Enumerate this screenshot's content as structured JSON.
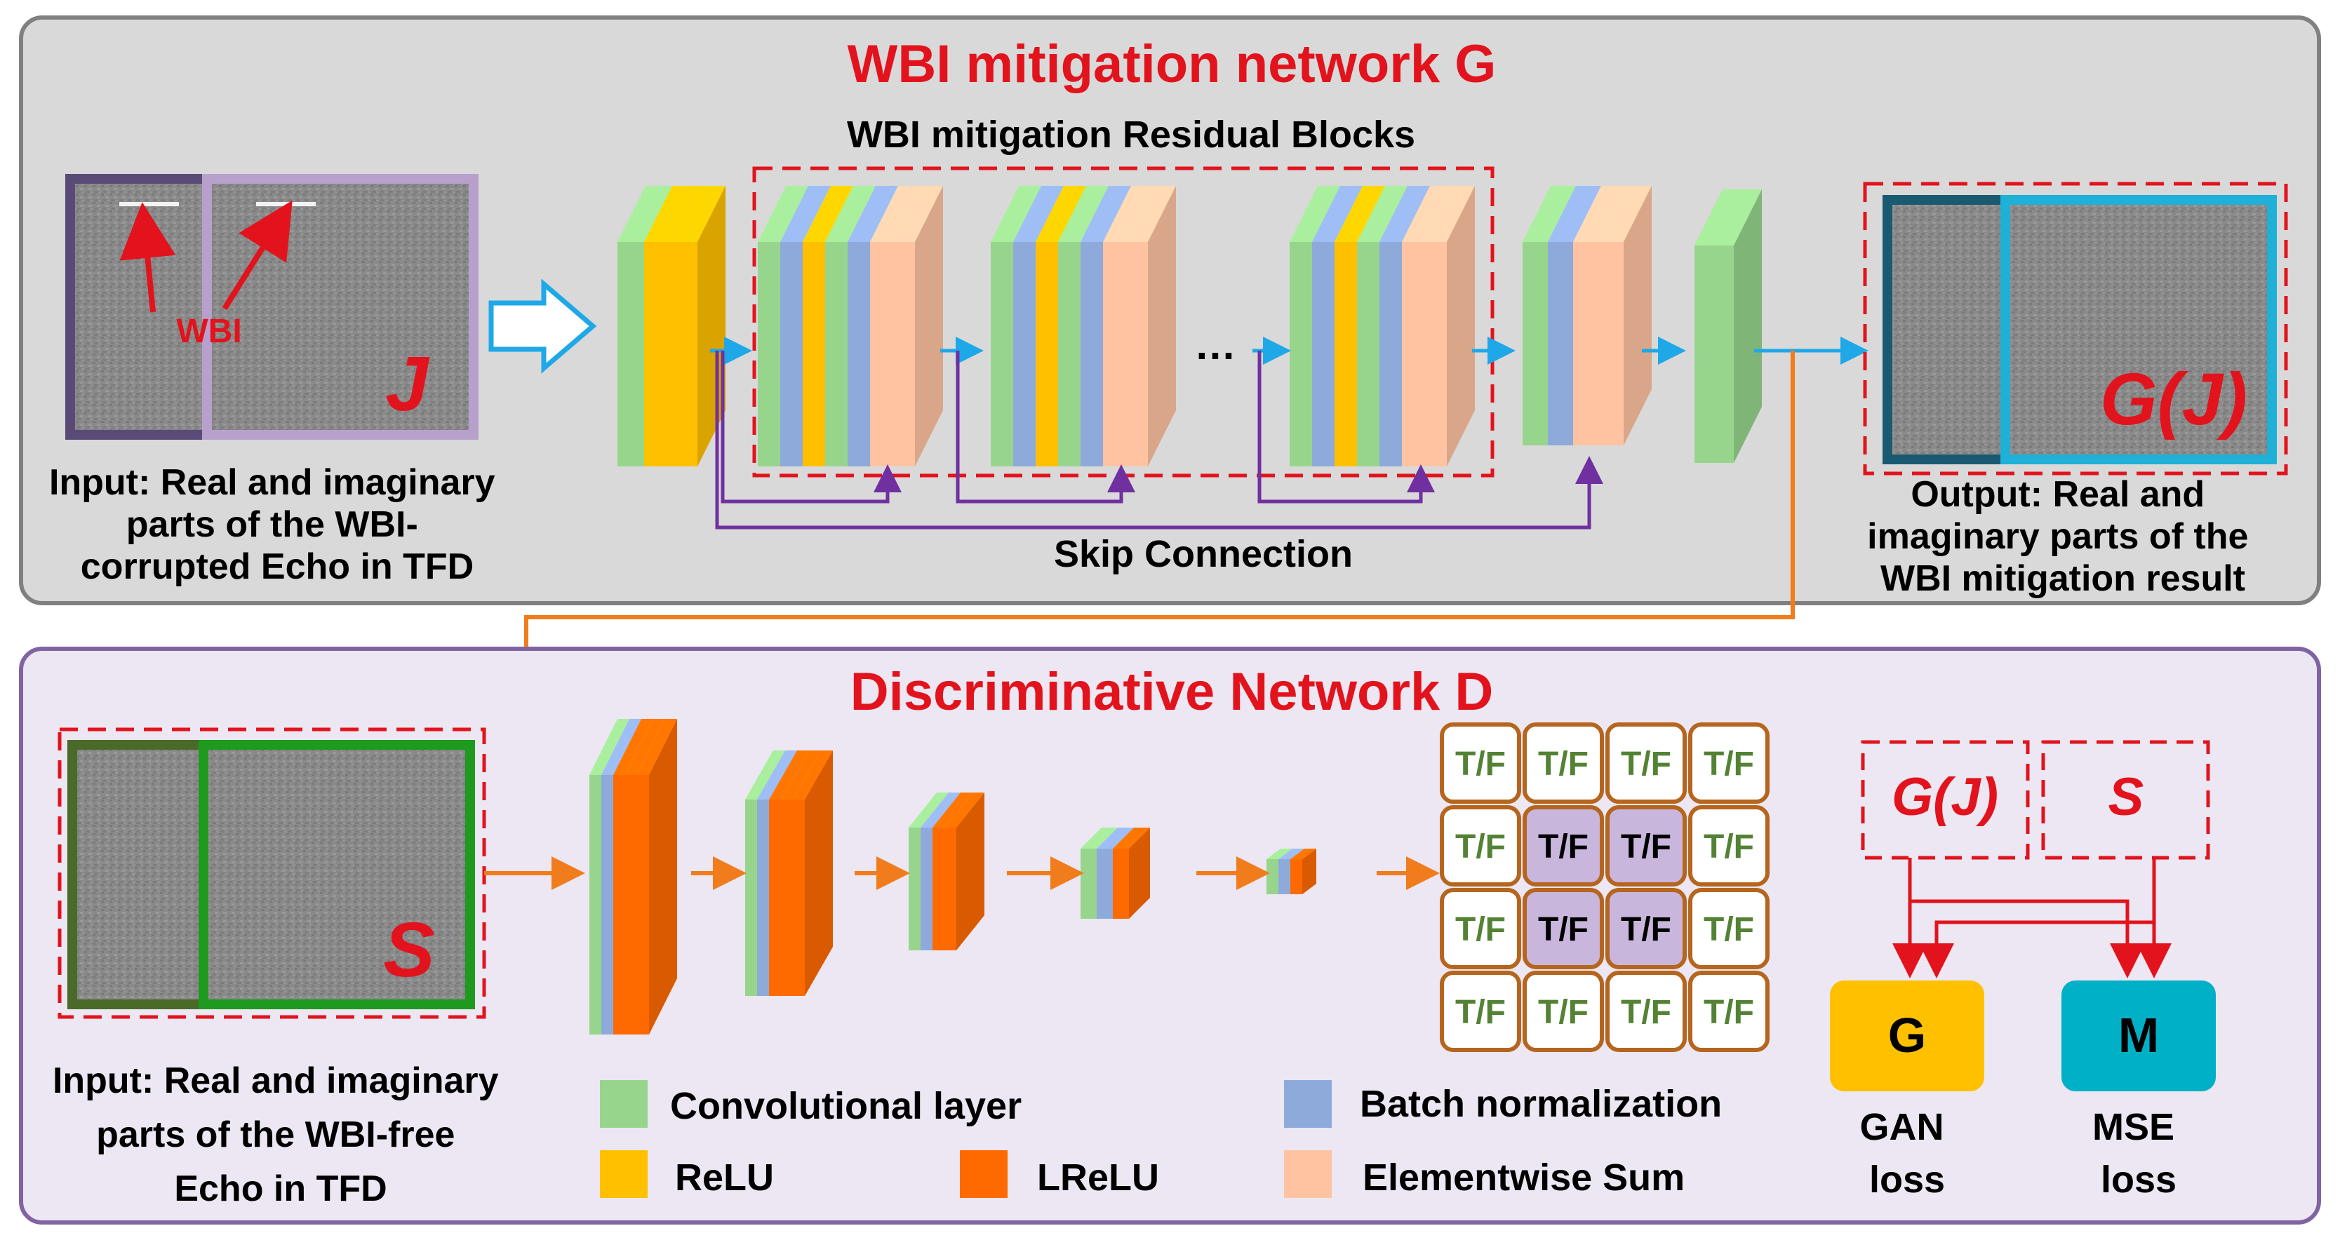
{
  "generator": {
    "title": "WBI mitigation network G",
    "residual_title": "WBI mitigation Residual Blocks",
    "wbi_label": "WBI",
    "input_symbol": "J",
    "input_caption": [
      "Input: Real and imaginary",
      "parts of the WBI-",
      "corrupted Echo  in TFD"
    ],
    "ellipsis": "…",
    "skip_label": "Skip Connection",
    "output_symbol": "G(J)",
    "output_caption": [
      "Output: Real and",
      "imaginary parts of the",
      "WBI mitigation result"
    ]
  },
  "discriminator": {
    "title": "Discriminative Network D",
    "input_symbol": "S",
    "input_caption": [
      "Input: Real and imaginary",
      "parts of the WBI-free",
      "Echo  in TFD"
    ],
    "tf_label": "T/F"
  },
  "legend": {
    "conv": "Convolutional layer",
    "bn": "Batch normalization",
    "relu": "ReLU",
    "lrelu": "LReLU",
    "sum": "Elementwise Sum"
  },
  "loss": {
    "gj": "G(J)",
    "s": "S",
    "g_letter": "G",
    "g_caption": [
      "GAN",
      "loss"
    ],
    "m_letter": "M",
    "m_caption": [
      "MSE",
      "loss"
    ]
  },
  "colors": {
    "conv": "#97d58d",
    "bn": "#8eaadb",
    "relu": "#ffc000",
    "lrelu": "#ff6a00",
    "sum": "#ffc3a1",
    "red": "#e2131c",
    "blue_arrow": "#1fa8e8",
    "orange_arrow": "#f07c1c",
    "purple": "#7030a0",
    "g_box": "#ffc000",
    "m_box": "#00b0c6"
  }
}
